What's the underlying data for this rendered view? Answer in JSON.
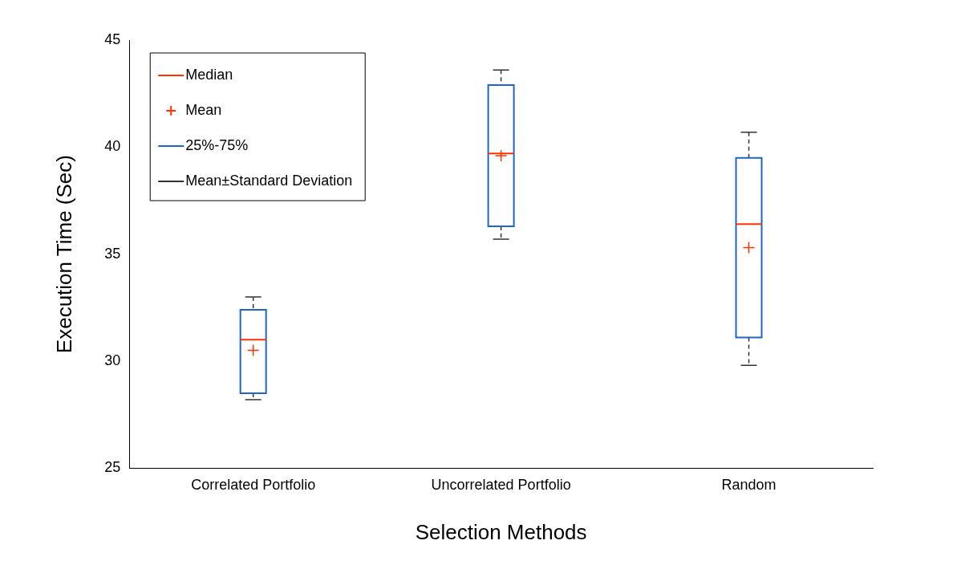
{
  "chart_data": {
    "type": "box",
    "xlabel": "Selection Methods",
    "ylabel": "Execution Time (Sec)",
    "categories": [
      "Correlated Portfolio",
      "Uncorrelated Portfolio",
      "Random"
    ],
    "series": [
      {
        "name": "25%-75%",
        "color": "#1f66c4",
        "boxes": [
          {
            "low": 28.2,
            "q1": 28.5,
            "median": 31.0,
            "q3": 32.4,
            "high": 33.0
          },
          {
            "low": 35.7,
            "q1": 36.3,
            "median": 39.7,
            "q3": 42.9,
            "high": 43.6
          },
          {
            "low": 29.8,
            "q1": 31.1,
            "median": 36.4,
            "q3": 39.5,
            "high": 40.7
          }
        ]
      },
      {
        "type": "scatter",
        "name": "Mean",
        "color": "#ff3300",
        "x": [
          "Correlated Portfolio",
          "Uncorrelated Portfolio",
          "Random"
        ],
        "values": [
          30.5,
          39.6,
          35.3
        ],
        "marker": "cross"
      }
    ],
    "annotations": [
      "Median",
      "Mean±Standard Deviation"
    ],
    "ylim": [
      25,
      45
    ],
    "yticks": [
      25,
      30,
      35,
      40,
      45
    ],
    "grid": false,
    "legend": "top left"
  }
}
